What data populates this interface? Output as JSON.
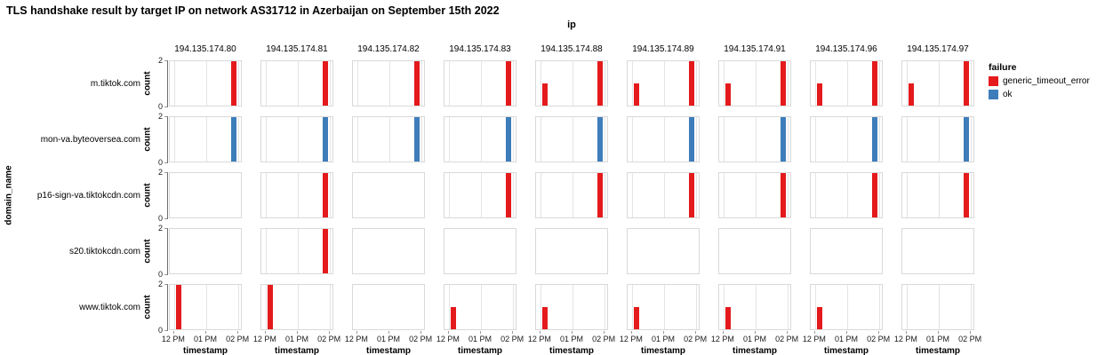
{
  "chart_data": {
    "type": "bar",
    "title": "TLS handshake result by target IP on network AS31712 in Azerbaijan on September 15th 2022",
    "facet_column_title": "ip",
    "facet_row_title": "domain_name",
    "columns": [
      "194.135.174.80",
      "194.135.174.81",
      "194.135.174.82",
      "194.135.174.83",
      "194.135.174.88",
      "194.135.174.89",
      "194.135.174.91",
      "194.135.174.96",
      "194.135.174.97"
    ],
    "rows": [
      "m.tiktok.com",
      "mon-va.byteoversea.com",
      "p16-sign-va.tiktokcdn.com",
      "s20.tiktokcdn.com",
      "www.tiktok.com"
    ],
    "xlabel": "timestamp",
    "ylabel": "count",
    "x_ticks": [
      "12 PM",
      "01 PM",
      "02 PM"
    ],
    "y_ticks": [
      0,
      2
    ],
    "ylim": [
      0,
      2
    ],
    "grid": true,
    "legend": {
      "title": "failure",
      "position": "right",
      "entries": [
        {
          "label": "generic_timeout_error",
          "color": "#e41a1c"
        },
        {
          "label": "ok",
          "color": "#3d7dba"
        }
      ]
    },
    "cells": [
      {
        "domain_name": "m.tiktok.com",
        "ip": "194.135.174.80",
        "bars": [
          {
            "time": "02 PM",
            "count": 2,
            "failure": "generic_timeout_error"
          }
        ]
      },
      {
        "domain_name": "m.tiktok.com",
        "ip": "194.135.174.81",
        "bars": [
          {
            "time": "02 PM",
            "count": 2,
            "failure": "generic_timeout_error"
          }
        ]
      },
      {
        "domain_name": "m.tiktok.com",
        "ip": "194.135.174.82",
        "bars": [
          {
            "time": "02 PM",
            "count": 2,
            "failure": "generic_timeout_error"
          }
        ]
      },
      {
        "domain_name": "m.tiktok.com",
        "ip": "194.135.174.83",
        "bars": [
          {
            "time": "02 PM",
            "count": 2,
            "failure": "generic_timeout_error"
          }
        ]
      },
      {
        "domain_name": "m.tiktok.com",
        "ip": "194.135.174.88",
        "bars": [
          {
            "time": "12 PM",
            "count": 1,
            "failure": "generic_timeout_error"
          },
          {
            "time": "02 PM",
            "count": 2,
            "failure": "generic_timeout_error"
          }
        ]
      },
      {
        "domain_name": "m.tiktok.com",
        "ip": "194.135.174.89",
        "bars": [
          {
            "time": "12 PM",
            "count": 1,
            "failure": "generic_timeout_error"
          },
          {
            "time": "02 PM",
            "count": 2,
            "failure": "generic_timeout_error"
          }
        ]
      },
      {
        "domain_name": "m.tiktok.com",
        "ip": "194.135.174.91",
        "bars": [
          {
            "time": "12 PM",
            "count": 1,
            "failure": "generic_timeout_error"
          },
          {
            "time": "02 PM",
            "count": 2,
            "failure": "generic_timeout_error"
          }
        ]
      },
      {
        "domain_name": "m.tiktok.com",
        "ip": "194.135.174.96",
        "bars": [
          {
            "time": "12 PM",
            "count": 1,
            "failure": "generic_timeout_error"
          },
          {
            "time": "02 PM",
            "count": 2,
            "failure": "generic_timeout_error"
          }
        ]
      },
      {
        "domain_name": "m.tiktok.com",
        "ip": "194.135.174.97",
        "bars": [
          {
            "time": "12 PM",
            "count": 1,
            "failure": "generic_timeout_error"
          },
          {
            "time": "02 PM",
            "count": 2,
            "failure": "generic_timeout_error"
          }
        ]
      },
      {
        "domain_name": "mon-va.byteoversea.com",
        "ip": "194.135.174.80",
        "bars": [
          {
            "time": "02 PM",
            "count": 2,
            "failure": "ok"
          }
        ]
      },
      {
        "domain_name": "mon-va.byteoversea.com",
        "ip": "194.135.174.81",
        "bars": [
          {
            "time": "02 PM",
            "count": 2,
            "failure": "ok"
          }
        ]
      },
      {
        "domain_name": "mon-va.byteoversea.com",
        "ip": "194.135.174.82",
        "bars": [
          {
            "time": "02 PM",
            "count": 2,
            "failure": "ok"
          }
        ]
      },
      {
        "domain_name": "mon-va.byteoversea.com",
        "ip": "194.135.174.83",
        "bars": [
          {
            "time": "02 PM",
            "count": 2,
            "failure": "ok"
          }
        ]
      },
      {
        "domain_name": "mon-va.byteoversea.com",
        "ip": "194.135.174.88",
        "bars": [
          {
            "time": "02 PM",
            "count": 2,
            "failure": "ok"
          }
        ]
      },
      {
        "domain_name": "mon-va.byteoversea.com",
        "ip": "194.135.174.89",
        "bars": [
          {
            "time": "02 PM",
            "count": 2,
            "failure": "ok"
          }
        ]
      },
      {
        "domain_name": "mon-va.byteoversea.com",
        "ip": "194.135.174.91",
        "bars": [
          {
            "time": "02 PM",
            "count": 2,
            "failure": "ok"
          }
        ]
      },
      {
        "domain_name": "mon-va.byteoversea.com",
        "ip": "194.135.174.96",
        "bars": [
          {
            "time": "02 PM",
            "count": 2,
            "failure": "ok"
          }
        ]
      },
      {
        "domain_name": "mon-va.byteoversea.com",
        "ip": "194.135.174.97",
        "bars": [
          {
            "time": "02 PM",
            "count": 2,
            "failure": "ok"
          }
        ]
      },
      {
        "domain_name": "p16-sign-va.tiktokcdn.com",
        "ip": "194.135.174.81",
        "bars": [
          {
            "time": "02 PM",
            "count": 2,
            "failure": "generic_timeout_error"
          }
        ]
      },
      {
        "domain_name": "p16-sign-va.tiktokcdn.com",
        "ip": "194.135.174.83",
        "bars": [
          {
            "time": "02 PM",
            "count": 2,
            "failure": "generic_timeout_error"
          }
        ]
      },
      {
        "domain_name": "p16-sign-va.tiktokcdn.com",
        "ip": "194.135.174.88",
        "bars": [
          {
            "time": "02 PM",
            "count": 2,
            "failure": "generic_timeout_error"
          }
        ]
      },
      {
        "domain_name": "p16-sign-va.tiktokcdn.com",
        "ip": "194.135.174.89",
        "bars": [
          {
            "time": "02 PM",
            "count": 2,
            "failure": "generic_timeout_error"
          }
        ]
      },
      {
        "domain_name": "p16-sign-va.tiktokcdn.com",
        "ip": "194.135.174.91",
        "bars": [
          {
            "time": "02 PM",
            "count": 2,
            "failure": "generic_timeout_error"
          }
        ]
      },
      {
        "domain_name": "p16-sign-va.tiktokcdn.com",
        "ip": "194.135.174.96",
        "bars": [
          {
            "time": "02 PM",
            "count": 2,
            "failure": "generic_timeout_error"
          }
        ]
      },
      {
        "domain_name": "p16-sign-va.tiktokcdn.com",
        "ip": "194.135.174.97",
        "bars": [
          {
            "time": "02 PM",
            "count": 2,
            "failure": "generic_timeout_error"
          }
        ]
      },
      {
        "domain_name": "s20.tiktokcdn.com",
        "ip": "194.135.174.81",
        "bars": [
          {
            "time": "02 PM",
            "count": 2,
            "failure": "generic_timeout_error"
          }
        ]
      },
      {
        "domain_name": "www.tiktok.com",
        "ip": "194.135.174.80",
        "bars": [
          {
            "time": "12 PM",
            "count": 2,
            "failure": "generic_timeout_error"
          }
        ]
      },
      {
        "domain_name": "www.tiktok.com",
        "ip": "194.135.174.81",
        "bars": [
          {
            "time": "12 PM",
            "count": 2,
            "failure": "generic_timeout_error"
          }
        ]
      },
      {
        "domain_name": "www.tiktok.com",
        "ip": "194.135.174.83",
        "bars": [
          {
            "time": "12 PM",
            "count": 1,
            "failure": "generic_timeout_error"
          }
        ]
      },
      {
        "domain_name": "www.tiktok.com",
        "ip": "194.135.174.88",
        "bars": [
          {
            "time": "12 PM",
            "count": 1,
            "failure": "generic_timeout_error"
          }
        ]
      },
      {
        "domain_name": "www.tiktok.com",
        "ip": "194.135.174.89",
        "bars": [
          {
            "time": "12 PM",
            "count": 1,
            "failure": "generic_timeout_error"
          }
        ]
      },
      {
        "domain_name": "www.tiktok.com",
        "ip": "194.135.174.91",
        "bars": [
          {
            "time": "12 PM",
            "count": 1,
            "failure": "generic_timeout_error"
          }
        ]
      },
      {
        "domain_name": "www.tiktok.com",
        "ip": "194.135.174.96",
        "bars": [
          {
            "time": "12 PM",
            "count": 1,
            "failure": "generic_timeout_error"
          }
        ]
      },
      {
        "domain_name": "www.tiktok.com",
        "ip": "194.135.174.97",
        "bars": []
      }
    ]
  }
}
